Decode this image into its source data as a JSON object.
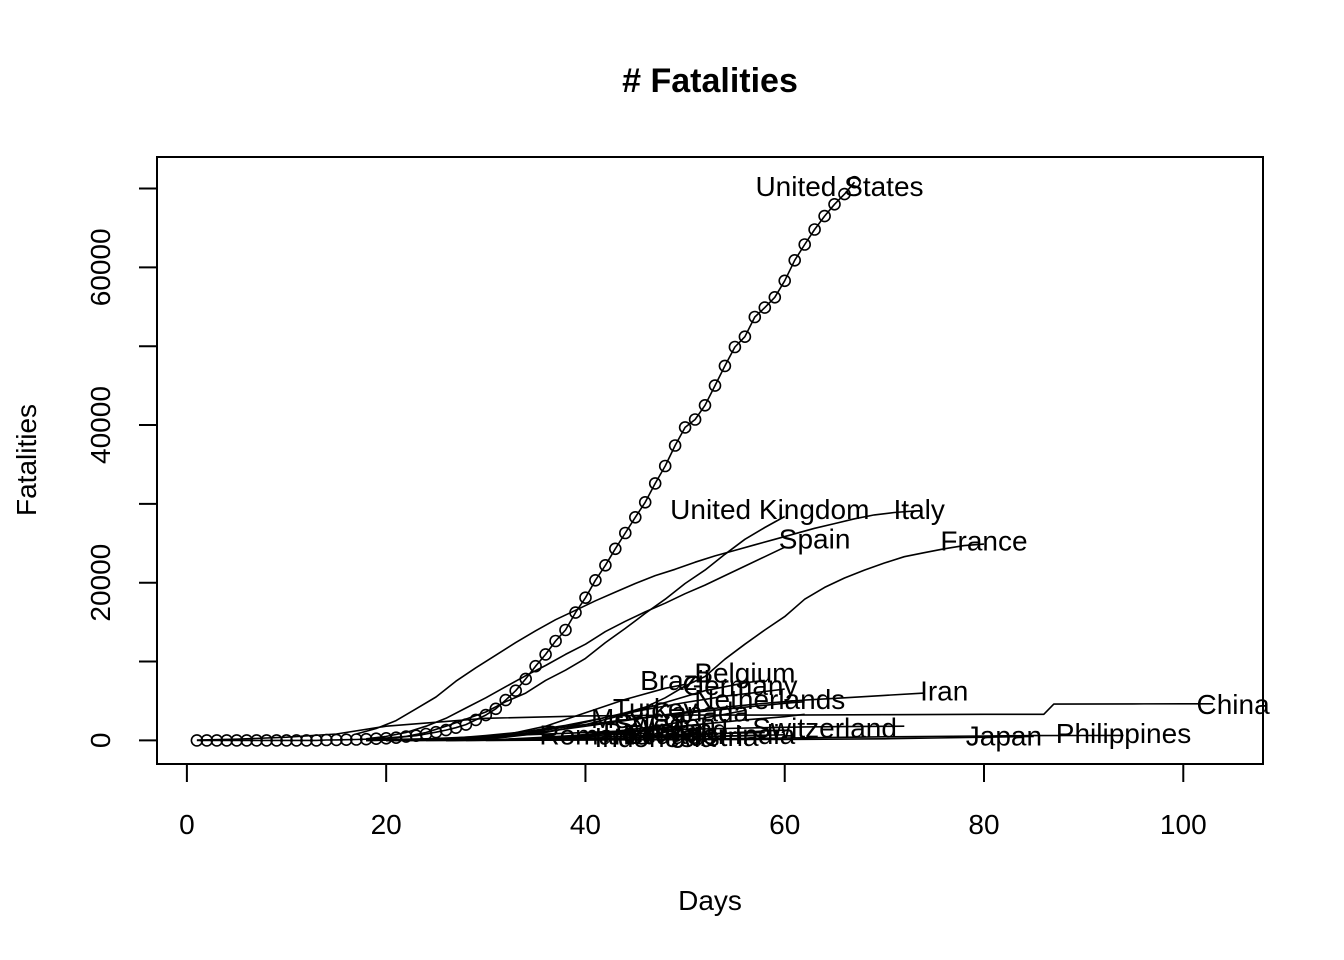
{
  "chart_data": {
    "type": "line",
    "title": "# Fatalities",
    "xlabel": "Days",
    "ylabel": "Fatalities",
    "xlim": [
      -3,
      108
    ],
    "ylim": [
      -3000,
      74000
    ],
    "xticks": [
      0,
      20,
      40,
      60,
      80,
      100
    ],
    "yticks": [
      0,
      20000,
      40000,
      60000
    ],
    "grid": false,
    "legend": "none",
    "series": [
      {
        "name": "United States",
        "markers": true,
        "x": [
          1,
          2,
          3,
          4,
          5,
          6,
          7,
          8,
          9,
          10,
          11,
          12,
          13,
          14,
          15,
          16,
          17,
          18,
          19,
          20,
          21,
          22,
          23,
          24,
          25,
          26,
          27,
          28,
          29,
          30,
          31,
          32,
          33,
          34,
          35,
          36,
          37,
          38,
          39,
          40,
          41,
          42,
          43,
          44,
          45,
          46,
          47,
          48,
          49,
          50,
          51,
          52,
          53,
          54,
          55,
          56,
          57,
          58,
          59,
          60,
          61,
          62,
          63,
          64,
          65,
          66,
          67
        ],
        "y": [
          0,
          0,
          0,
          0,
          0,
          0,
          0,
          0,
          0,
          0,
          0,
          0,
          0,
          50,
          60,
          85,
          110,
          150,
          210,
          260,
          340,
          470,
          590,
          800,
          1030,
          1300,
          1600,
          2000,
          2600,
          3200,
          4000,
          5100,
          6300,
          7800,
          9400,
          10900,
          12600,
          14000,
          16200,
          18100,
          20300,
          22200,
          24300,
          26300,
          28300,
          30200,
          32600,
          34800,
          37400,
          39700,
          40700,
          42500,
          45000,
          47500,
          49900,
          51200,
          53700,
          54900,
          56200,
          58300,
          60900,
          62900,
          64800,
          66500,
          68000,
          69300,
          70800
        ],
        "label": {
          "text": "United States",
          "x": 65.5,
          "y": 70000
        }
      },
      {
        "name": "United Kingdom",
        "x": [
          18,
          20,
          22,
          24,
          26,
          28,
          30,
          32,
          34,
          36,
          38,
          40,
          42,
          44,
          46,
          48,
          50,
          52,
          54,
          56,
          58,
          60
        ],
        "y": [
          100,
          300,
          500,
          1000,
          1800,
          2700,
          3600,
          4900,
          6000,
          7600,
          8900,
          10400,
          12400,
          14200,
          16100,
          17900,
          19900,
          21600,
          23600,
          25500,
          27000,
          28400
        ],
        "label": {
          "text": "United Kingdom",
          "x": 58.5,
          "y": 29000
        }
      },
      {
        "name": "Italy",
        "x": [
          17,
          19,
          21,
          23,
          25,
          27,
          29,
          31,
          33,
          35,
          37,
          39,
          41,
          43,
          45,
          47,
          49,
          51,
          53,
          55,
          57,
          59,
          61,
          63,
          65,
          67,
          69,
          71,
          73
        ],
        "y": [
          800,
          1500,
          2500,
          4000,
          5500,
          7500,
          9200,
          10800,
          12400,
          13900,
          15300,
          16500,
          17700,
          18800,
          19900,
          20900,
          21700,
          22600,
          23400,
          24100,
          24800,
          25500,
          26200,
          26900,
          27500,
          28100,
          28600,
          28900,
          29100
        ],
        "label": {
          "text": "Italy",
          "x": 73.5,
          "y": 29000
        }
      },
      {
        "name": "Spain",
        "x": [
          18,
          20,
          22,
          24,
          26,
          28,
          30,
          32,
          34,
          36,
          38,
          40,
          42,
          44,
          46,
          48,
          50,
          52,
          54,
          56,
          58,
          60
        ],
        "y": [
          200,
          500,
          1000,
          1800,
          2800,
          4100,
          5400,
          6800,
          8200,
          9500,
          10900,
          12200,
          13800,
          15100,
          16300,
          17400,
          18600,
          19700,
          20900,
          22100,
          23300,
          24500
        ],
        "label": {
          "text": "Spain",
          "x": 63,
          "y": 25300
        }
      },
      {
        "name": "France",
        "x": [
          18,
          20,
          22,
          24,
          26,
          28,
          30,
          32,
          34,
          36,
          38,
          40,
          42,
          44,
          46,
          48,
          50,
          52,
          54,
          56,
          58,
          60,
          62,
          64,
          66,
          68,
          70,
          72,
          74,
          76,
          78,
          80
        ],
        "y": [
          0,
          100,
          150,
          200,
          300,
          400,
          500,
          700,
          900,
          1300,
          1700,
          2300,
          2900,
          3500,
          4200,
          5400,
          6900,
          8100,
          10300,
          12200,
          14000,
          15700,
          17900,
          19400,
          20600,
          21600,
          22500,
          23300,
          23800,
          24300,
          24700,
          24900
        ],
        "label": {
          "text": "France",
          "x": 80,
          "y": 25000
        }
      },
      {
        "name": "Belgium",
        "x": [
          20,
          24,
          28,
          32,
          36,
          40,
          44,
          48,
          52,
          56,
          58
        ],
        "y": [
          0,
          50,
          100,
          400,
          1000,
          2000,
          3300,
          4800,
          6300,
          7300,
          7600
        ],
        "label": {
          "text": "Belgium",
          "x": 56,
          "y": 8300
        }
      },
      {
        "name": "Brazil",
        "x": [
          20,
          24,
          28,
          32,
          36,
          40,
          44,
          48,
          50
        ],
        "y": [
          0,
          50,
          200,
          700,
          1800,
          3500,
          5200,
          6600,
          7100
        ],
        "label": {
          "text": "Brazil",
          "x": 49,
          "y": 7300
        }
      },
      {
        "name": "Germany",
        "x": [
          18,
          22,
          26,
          30,
          34,
          38,
          42,
          46,
          50,
          54,
          58,
          60
        ],
        "y": [
          0,
          50,
          200,
          500,
          1100,
          1900,
          2900,
          3900,
          4800,
          5600,
          6200,
          6500
        ],
        "label": {
          "text": "Germany",
          "x": 55.5,
          "y": 6700
        }
      },
      {
        "name": "Netherlands",
        "x": [
          20,
          24,
          28,
          32,
          36,
          40,
          44,
          48,
          52,
          56,
          60,
          62
        ],
        "y": [
          0,
          100,
          300,
          600,
          1100,
          1800,
          2500,
          3200,
          3700,
          4200,
          4700,
          4900
        ],
        "label": {
          "text": "Netherlands",
          "x": 58.5,
          "y": 4900
        }
      },
      {
        "name": "Turkey",
        "x": [
          26,
          30,
          34,
          38,
          42,
          46,
          50,
          54,
          56
        ],
        "y": [
          0,
          50,
          200,
          500,
          1000,
          1600,
          2400,
          3300,
          3800
        ],
        "label": {
          "text": "Turkey",
          "x": 47,
          "y": 3800
        }
      },
      {
        "name": "Canada",
        "x": [
          20,
          24,
          28,
          32,
          36,
          40,
          44,
          48,
          52,
          56,
          60,
          62
        ],
        "y": [
          0,
          20,
          50,
          150,
          400,
          700,
          1100,
          1600,
          2100,
          2600,
          3000,
          3300
        ],
        "label": {
          "text": "Canada",
          "x": 51.5,
          "y": 3300
        }
      },
      {
        "name": "Mexico",
        "x": [
          26,
          30,
          34,
          38,
          42,
          46,
          50,
          52
        ],
        "y": [
          0,
          20,
          100,
          300,
          700,
          1200,
          1800,
          2100
        ],
        "label": {
          "text": "Mexico",
          "x": 45,
          "y": 2500
        }
      },
      {
        "name": "Switzerland",
        "x": [
          18,
          22,
          26,
          30,
          34,
          38,
          42,
          46,
          50,
          54,
          58,
          62,
          66,
          70,
          72
        ],
        "y": [
          0,
          50,
          150,
          400,
          700,
          900,
          1100,
          1300,
          1400,
          1500,
          1600,
          1700,
          1750,
          1780,
          1790
        ],
        "label": {
          "text": "Switzerland",
          "x": 64,
          "y": 1300
        }
      },
      {
        "name": "India",
        "x": [
          26,
          30,
          34,
          38,
          42,
          46,
          50,
          54,
          58,
          60
        ],
        "y": [
          0,
          10,
          30,
          100,
          200,
          400,
          600,
          900,
          1200,
          1300
        ],
        "label": {
          "text": "India",
          "x": 58,
          "y": 500
        }
      },
      {
        "name": "Romania",
        "x": [
          22,
          26,
          30,
          34,
          38,
          42,
          44
        ],
        "y": [
          0,
          10,
          50,
          150,
          400,
          700,
          800
        ],
        "label": {
          "text": "Romania",
          "x": 41,
          "y": 400
        }
      },
      {
        "name": "Iran",
        "x": [
          18,
          22,
          26,
          30,
          34,
          38,
          42,
          46,
          50,
          54,
          58,
          62,
          66,
          70,
          74
        ],
        "y": [
          0,
          50,
          200,
          600,
          1100,
          1700,
          2300,
          2900,
          3600,
          4200,
          4700,
          5100,
          5400,
          5700,
          6000
        ],
        "label": {
          "text": "Iran",
          "x": 76,
          "y": 6000
        }
      },
      {
        "name": "China",
        "x": [
          1,
          5,
          10,
          15,
          20,
          30,
          40,
          50,
          60,
          70,
          80,
          86,
          87,
          95,
          100,
          103
        ],
        "y": [
          50,
          150,
          400,
          800,
          1800,
          2800,
          3100,
          3200,
          3200,
          3250,
          3300,
          3300,
          4600,
          4630,
          4633,
          4633
        ],
        "label": {
          "text": "China",
          "x": 105,
          "y": 4300
        }
      },
      {
        "name": "Japan",
        "x": [
          20,
          30,
          40,
          50,
          60,
          70,
          75,
          80,
          85
        ],
        "y": [
          0,
          20,
          50,
          80,
          120,
          200,
          300,
          400,
          500
        ],
        "label": {
          "text": "Japan",
          "x": 82,
          "y": 300
        }
      },
      {
        "name": "Philippines",
        "x": [
          30,
          40,
          50,
          60,
          70,
          80,
          85,
          90,
          94
        ],
        "y": [
          0,
          50,
          150,
          300,
          450,
          550,
          600,
          620,
          630
        ],
        "label": {
          "text": "Philippines",
          "x": 94,
          "y": 600
        }
      },
      {
        "name": "",
        "x": [
          22,
          30,
          38,
          46,
          54,
          58
        ],
        "y": [
          0,
          100,
          300,
          600,
          900,
          1000
        ]
      },
      {
        "name": "",
        "x": [
          24,
          32,
          40,
          48,
          56,
          60
        ],
        "y": [
          0,
          50,
          200,
          400,
          600,
          700
        ]
      },
      {
        "name": "",
        "x": [
          28,
          36,
          44,
          52,
          58
        ],
        "y": [
          0,
          100,
          300,
          500,
          600
        ]
      }
    ],
    "extra_labels": [
      {
        "text": "Sweden",
        "x": 48,
        "y": 1800
      },
      {
        "text": "Ireland",
        "x": 50,
        "y": 1100
      },
      {
        "text": "Portugal",
        "x": 47,
        "y": 700
      },
      {
        "text": "Ecuador",
        "x": 49,
        "y": 500
      },
      {
        "text": "Austria",
        "x": 53,
        "y": 200
      },
      {
        "text": "Indonesia",
        "x": 47,
        "y": 100
      }
    ]
  }
}
